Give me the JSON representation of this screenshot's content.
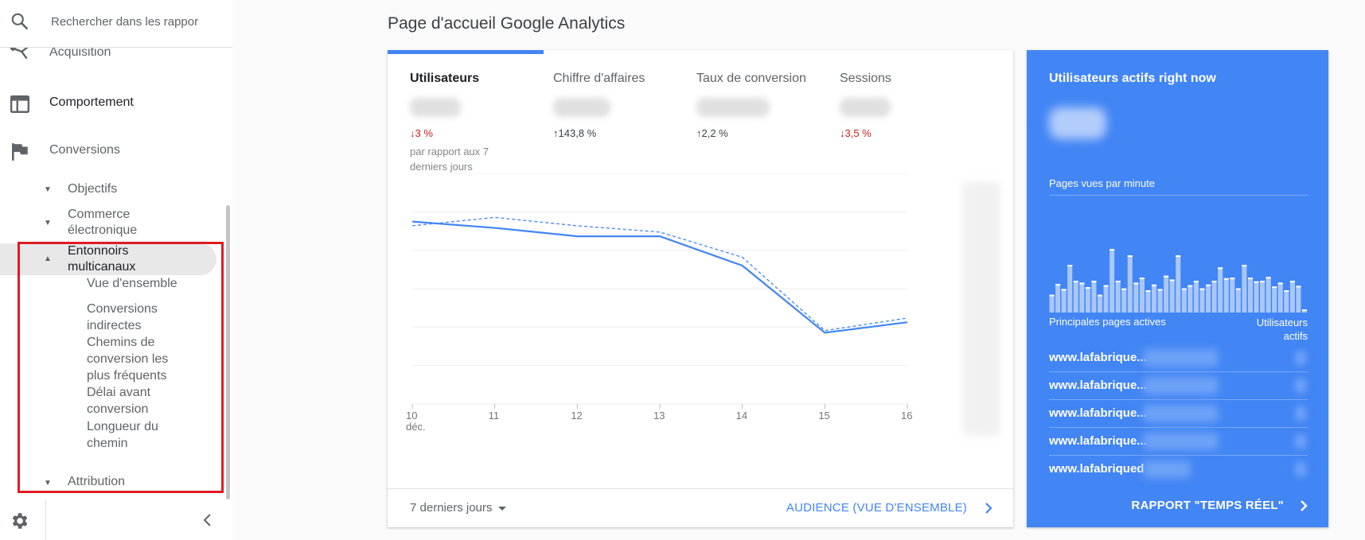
{
  "sidebar": {
    "search_placeholder": "Rechercher dans les rappor",
    "items": [
      {
        "label": "Acquisition",
        "icon": "acquisition-icon"
      },
      {
        "label": "Comportement",
        "icon": "behavior-icon"
      },
      {
        "label": "Conversions",
        "icon": "flag-icon"
      }
    ],
    "sub_items": [
      {
        "label": "Objectifs",
        "expanded": false
      },
      {
        "label": "Commerce électronique",
        "expanded": false
      },
      {
        "label": "Entonnoirs multicanaux",
        "expanded": true
      },
      {
        "label": "Attribution",
        "expanded": false
      }
    ],
    "leaves": [
      "Vue d'ensemble",
      "Conversions indirectes",
      "Chemins de conversion les plus fréquents",
      "Délai avant conversion",
      "Longueur du chemin"
    ],
    "settings_icon": "gear-icon",
    "collapse_icon": "chevron-left-icon"
  },
  "main": {
    "page_title": "Page d'accueil Google Analytics",
    "metrics": [
      {
        "name": "Utilisateurs",
        "delta": "↓3 %",
        "direction": "down",
        "comparison": "par rapport aux 7 derniers jours",
        "selected": true
      },
      {
        "name": "Chiffre d'affaires",
        "delta": "↑143,8 %",
        "direction": "up",
        "selected": false
      },
      {
        "name": "Taux de conversion",
        "delta": "↑2,2 %",
        "direction": "up",
        "selected": false
      },
      {
        "name": "Sessions",
        "delta": "↓3,5 %",
        "direction": "down",
        "selected": false
      }
    ],
    "date_range": "7 derniers jours",
    "audience_link": "AUDIENCE (VUE D'ENSEMBLE)"
  },
  "chart_data": {
    "type": "line",
    "x": [
      "10",
      "11",
      "12",
      "13",
      "14",
      "15",
      "16"
    ],
    "x_first_sublabel": "déc.",
    "series": [
      {
        "values": [
          0.87,
          0.84,
          0.8,
          0.8,
          0.66,
          0.34,
          0.39
        ],
        "style": "solid"
      },
      {
        "values": [
          0.85,
          0.89,
          0.85,
          0.82,
          0.7,
          0.35,
          0.41
        ],
        "style": "dashed"
      }
    ],
    "ylim": [
      0,
      1.1
    ],
    "grid": true,
    "colors": {
      "line": "#4285f4",
      "grid": "#eeeeee"
    }
  },
  "realtime": {
    "title": "Utilisateurs actifs right now",
    "pageviews_label": "Pages vues par minute",
    "bars": [
      0.28,
      0.45,
      0.37,
      0.75,
      0.5,
      0.47,
      0.4,
      0.5,
      0.28,
      0.43,
      1.0,
      0.5,
      0.38,
      0.9,
      0.47,
      0.55,
      0.35,
      0.44,
      0.37,
      0.58,
      0.52,
      0.9,
      0.38,
      0.43,
      0.5,
      0.38,
      0.44,
      0.5,
      0.71,
      0.54,
      0.55,
      0.38,
      0.75,
      0.55,
      0.49,
      0.5,
      0.56,
      0.41,
      0.47,
      0.35,
      0.5,
      0.42,
      0.05
    ],
    "col_pages": "Principales pages actives",
    "col_users": "Utilisateurs actifs",
    "rows": [
      "www.lafabrique...",
      "www.lafabrique...",
      "www.lafabrique...",
      "www.lafabrique...",
      "www.lafabriqued"
    ],
    "footer_link": "RAPPORT \"TEMPS RÉEL\"",
    "colors": {
      "panel": "#4285f4",
      "bar": "#a8c7fa"
    }
  }
}
